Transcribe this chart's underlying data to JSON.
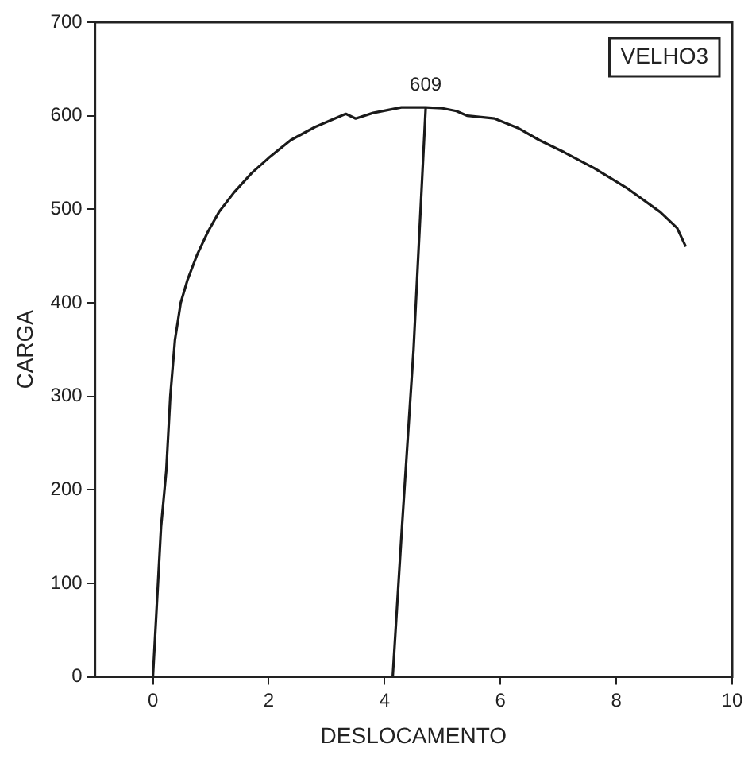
{
  "chart_data": {
    "type": "line",
    "xlabel": "DESLOCAMENTO",
    "ylabel": "CARGA",
    "xlim": [
      -1,
      10
    ],
    "xticks": [
      0,
      2,
      4,
      6,
      8,
      10
    ],
    "ylim": [
      0,
      700
    ],
    "yticks": [
      0,
      100,
      200,
      300,
      400,
      500,
      600,
      700
    ],
    "grid": false,
    "legend": false,
    "marker": "none",
    "line_style": "solid",
    "series": [
      {
        "color": "#1a1a1a",
        "x": [
          0,
          0.07,
          0.14,
          0.23,
          0.3,
          0.38,
          0.48,
          0.6,
          0.76,
          0.95,
          1.14,
          1.4,
          1.71,
          2.0,
          2.38,
          2.8,
          3.33,
          3.5,
          3.8,
          4.29,
          4.71,
          5.0,
          5.24,
          5.43,
          5.9,
          6.3,
          6.67,
          7.1,
          7.62,
          8.2,
          8.76,
          9.05,
          9.2
        ],
        "values": [
          0,
          80,
          160,
          220,
          300,
          360,
          400,
          425,
          451,
          476,
          497,
          518,
          539,
          555,
          574,
          588,
          602,
          597,
          603,
          609,
          609,
          608,
          605,
          600,
          597,
          587,
          574,
          561,
          544,
          522,
          497,
          480,
          460
        ]
      },
      {
        "color": "#1a1a1a",
        "x": [
          4.14,
          4.3,
          4.5,
          4.71
        ],
        "values": [
          0,
          160,
          350,
          609
        ]
      }
    ],
    "annotations": [
      {
        "text": "609",
        "x": 4.71,
        "y": 609
      },
      "VELHO3"
    ]
  }
}
